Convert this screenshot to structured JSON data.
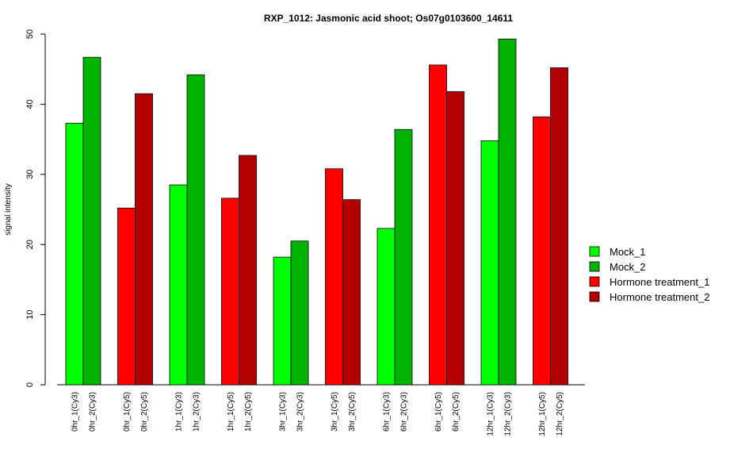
{
  "chart_data": {
    "type": "bar",
    "title": "RXP_1012: Jasmonic acid shoot; Os07g0103600_14611",
    "xlabel": "",
    "ylabel": "signal intensity",
    "ylim": [
      0,
      50
    ],
    "yticks": [
      0,
      10,
      20,
      30,
      40,
      50
    ],
    "grid": false,
    "legend_position": "right",
    "legend": [
      {
        "name": "Mock_1",
        "color": "#00FF00"
      },
      {
        "name": "Mock_2",
        "color": "#00B300"
      },
      {
        "name": "Hormone treatment_1",
        "color": "#FF0000"
      },
      {
        "name": "Hormone treatment_2",
        "color": "#B30000"
      }
    ],
    "bars": [
      {
        "label": "0hr_1(Cy3)",
        "value": 37.3,
        "series": 0
      },
      {
        "label": "0hr_2(Cy3)",
        "value": 46.7,
        "series": 1
      },
      {
        "label": "0hr_1(Cy5)",
        "value": 25.2,
        "series": 2
      },
      {
        "label": "0hr_2(Cy5)",
        "value": 41.5,
        "series": 3
      },
      {
        "label": "1hr_1(Cy3)",
        "value": 28.5,
        "series": 0
      },
      {
        "label": "1hr_2(Cy3)",
        "value": 44.2,
        "series": 1
      },
      {
        "label": "1hr_1(Cy5)",
        "value": 26.6,
        "series": 2
      },
      {
        "label": "1hr_2(Cy5)",
        "value": 32.7,
        "series": 3
      },
      {
        "label": "3hr_1(Cy3)",
        "value": 18.2,
        "series": 0
      },
      {
        "label": "3hr_2(Cy3)",
        "value": 20.5,
        "series": 1
      },
      {
        "label": "3hr_1(Cy5)",
        "value": 30.8,
        "series": 2
      },
      {
        "label": "3hr_2(Cy5)",
        "value": 26.4,
        "series": 3
      },
      {
        "label": "6hr_1(Cy3)",
        "value": 22.3,
        "series": 0
      },
      {
        "label": "6hr_2(Cy3)",
        "value": 36.4,
        "series": 1
      },
      {
        "label": "6hr_1(Cy5)",
        "value": 45.6,
        "series": 2
      },
      {
        "label": "6hr_2(Cy5)",
        "value": 41.8,
        "series": 3
      },
      {
        "label": "12hr_1(Cy3)",
        "value": 34.8,
        "series": 0
      },
      {
        "label": "12hr_2(Cy3)",
        "value": 49.3,
        "series": 1
      },
      {
        "label": "12hr_1(Cy5)",
        "value": 38.2,
        "series": 2
      },
      {
        "label": "12hr_2(Cy5)",
        "value": 45.2,
        "series": 3
      }
    ]
  }
}
